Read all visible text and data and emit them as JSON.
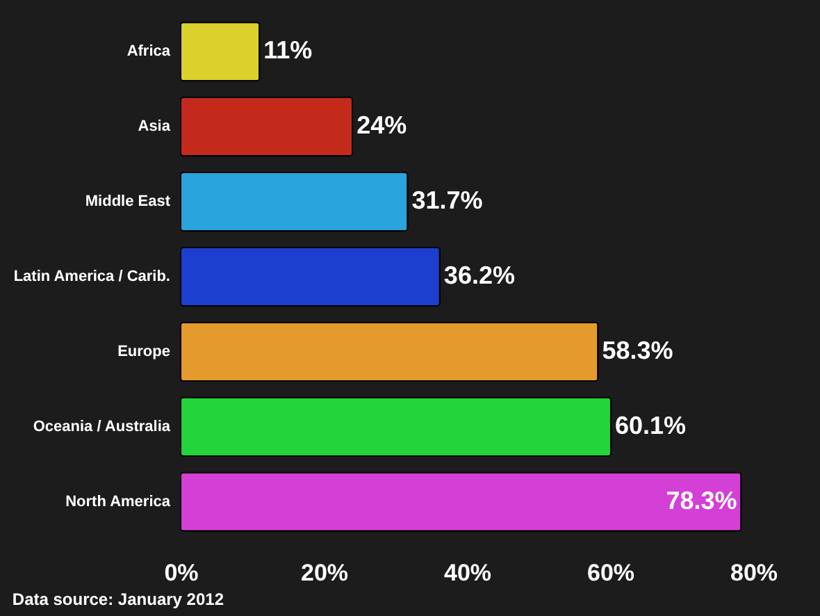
{
  "chart_data": {
    "type": "bar",
    "orientation": "horizontal",
    "categories": [
      "Africa",
      "Asia",
      "Middle East",
      "Latin America / Carib.",
      "Europe",
      "Oceania / Australia",
      "North America"
    ],
    "values": [
      11,
      24,
      31.7,
      36.2,
      58.3,
      60.1,
      78.3
    ],
    "colors": [
      "#dcd12c",
      "#c42a1c",
      "#2aa4dc",
      "#1c3fcf",
      "#e49a2c",
      "#22d43a",
      "#d43fd6"
    ],
    "value_labels": [
      "11%",
      "24%",
      "31.7%",
      "36.2%",
      "58.3%",
      "60.1%",
      "78.3%"
    ],
    "xlim": [
      0,
      80
    ],
    "xticks": [
      {
        "value": 0,
        "label": "0%"
      },
      {
        "value": 20,
        "label": "20%"
      },
      {
        "value": 40,
        "label": "40%"
      },
      {
        "value": 60,
        "label": "60%"
      },
      {
        "value": 80,
        "label": "80%"
      }
    ],
    "grid": false,
    "annotations": [
      "Data source: January 2012"
    ]
  }
}
